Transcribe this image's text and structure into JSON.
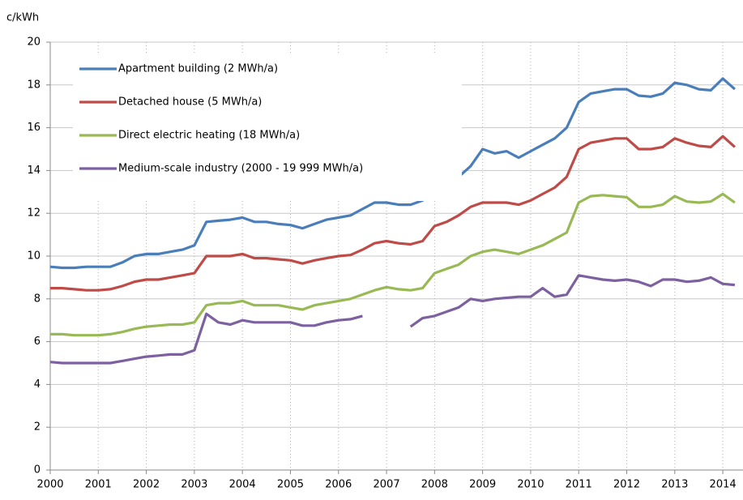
{
  "chart_data": {
    "type": "line",
    "y_label": "c/kWh",
    "x": [
      2000,
      2000.25,
      2000.5,
      2000.75,
      2001,
      2001.25,
      2001.5,
      2001.75,
      2002,
      2002.25,
      2002.5,
      2002.75,
      2003,
      2003.25,
      2003.5,
      2003.75,
      2004,
      2004.25,
      2004.5,
      2004.75,
      2005,
      2005.25,
      2005.5,
      2005.75,
      2006,
      2006.25,
      2006.5,
      2006.75,
      2007,
      2007.25,
      2007.5,
      2007.75,
      2008,
      2008.25,
      2008.5,
      2008.75,
      2009,
      2009.25,
      2009.5,
      2009.75,
      2010,
      2010.25,
      2010.5,
      2010.75,
      2011,
      2011.25,
      2011.5,
      2011.75,
      2012,
      2012.25,
      2012.5,
      2012.75,
      2013,
      2013.25,
      2013.5,
      2013.75,
      2014,
      2014.25
    ],
    "series": [
      {
        "name": "Apartment building (2 MWh/a)",
        "color": "#4a7ebb",
        "values": [
          9.5,
          9.45,
          9.45,
          9.5,
          9.5,
          9.5,
          9.7,
          10.0,
          10.1,
          10.1,
          10.2,
          10.3,
          10.5,
          11.6,
          11.65,
          11.7,
          11.8,
          11.6,
          11.6,
          11.5,
          11.45,
          11.3,
          11.5,
          11.7,
          11.8,
          11.9,
          12.2,
          12.5,
          12.5,
          12.4,
          12.4,
          12.6,
          13.2,
          13.4,
          13.7,
          14.2,
          15.0,
          14.8,
          14.9,
          14.6,
          14.9,
          15.2,
          15.5,
          16.0,
          17.2,
          17.6,
          17.7,
          17.8,
          17.8,
          17.5,
          17.45,
          17.6,
          18.1,
          18.0,
          17.8,
          17.75,
          18.3,
          17.8
        ]
      },
      {
        "name": "Detached house (5 MWh/a)",
        "color": "#be4b48",
        "values": [
          8.5,
          8.5,
          8.45,
          8.4,
          8.4,
          8.45,
          8.6,
          8.8,
          8.9,
          8.9,
          9.0,
          9.1,
          9.2,
          10.0,
          10.0,
          10.0,
          10.1,
          9.9,
          9.9,
          9.85,
          9.8,
          9.65,
          9.8,
          9.9,
          10.0,
          10.05,
          10.3,
          10.6,
          10.7,
          10.6,
          10.55,
          10.7,
          11.4,
          11.6,
          11.9,
          12.3,
          12.5,
          12.5,
          12.5,
          12.4,
          12.6,
          12.9,
          13.2,
          13.7,
          15.0,
          15.3,
          15.4,
          15.5,
          15.5,
          15.0,
          15.0,
          15.1,
          15.5,
          15.3,
          15.15,
          15.1,
          15.6,
          15.1
        ]
      },
      {
        "name": "Direct electric heating (18 MWh/a)",
        "color": "#98b954",
        "values": [
          6.35,
          6.35,
          6.3,
          6.3,
          6.3,
          6.35,
          6.45,
          6.6,
          6.7,
          6.75,
          6.8,
          6.8,
          6.9,
          7.7,
          7.8,
          7.8,
          7.9,
          7.7,
          7.7,
          7.7,
          7.6,
          7.5,
          7.7,
          7.8,
          7.9,
          8.0,
          8.2,
          8.4,
          8.55,
          8.45,
          8.4,
          8.5,
          9.2,
          9.4,
          9.6,
          10.0,
          10.2,
          10.3,
          10.2,
          10.1,
          10.3,
          10.5,
          10.8,
          11.1,
          12.5,
          12.8,
          12.85,
          12.8,
          12.75,
          12.3,
          12.3,
          12.4,
          12.8,
          12.55,
          12.5,
          12.55,
          12.9,
          12.5
        ]
      },
      {
        "name": "Medium-scale industry (2000 - 19 999 MWh/a)",
        "color": "#7d60a0",
        "values": [
          5.05,
          5.0,
          5.0,
          5.0,
          5.0,
          5.0,
          5.1,
          5.2,
          5.3,
          5.35,
          5.4,
          5.4,
          5.6,
          7.3,
          6.9,
          6.8,
          7.0,
          6.9,
          6.9,
          6.9,
          6.9,
          6.75,
          6.75,
          6.9,
          7.0,
          7.05,
          7.2,
          null,
          null,
          null,
          6.7,
          7.1,
          7.2,
          7.4,
          7.6,
          8.0,
          7.9,
          8.0,
          8.05,
          8.1,
          8.1,
          8.5,
          8.1,
          8.2,
          9.1,
          9.0,
          8.9,
          8.85,
          8.9,
          8.8,
          8.6,
          8.9,
          8.9,
          8.8,
          8.85,
          9.0,
          8.7,
          8.65
        ]
      }
    ],
    "xlim": [
      2000,
      2014.42
    ],
    "xticks": [
      2000,
      2001,
      2002,
      2003,
      2004,
      2005,
      2006,
      2007,
      2008,
      2009,
      2010,
      2011,
      2012,
      2013,
      2014
    ],
    "ylim": [
      0,
      20
    ],
    "yticks": [
      0,
      2,
      4,
      6,
      8,
      10,
      12,
      14,
      16,
      18,
      20
    ],
    "grid": true,
    "legend": "upper left"
  }
}
